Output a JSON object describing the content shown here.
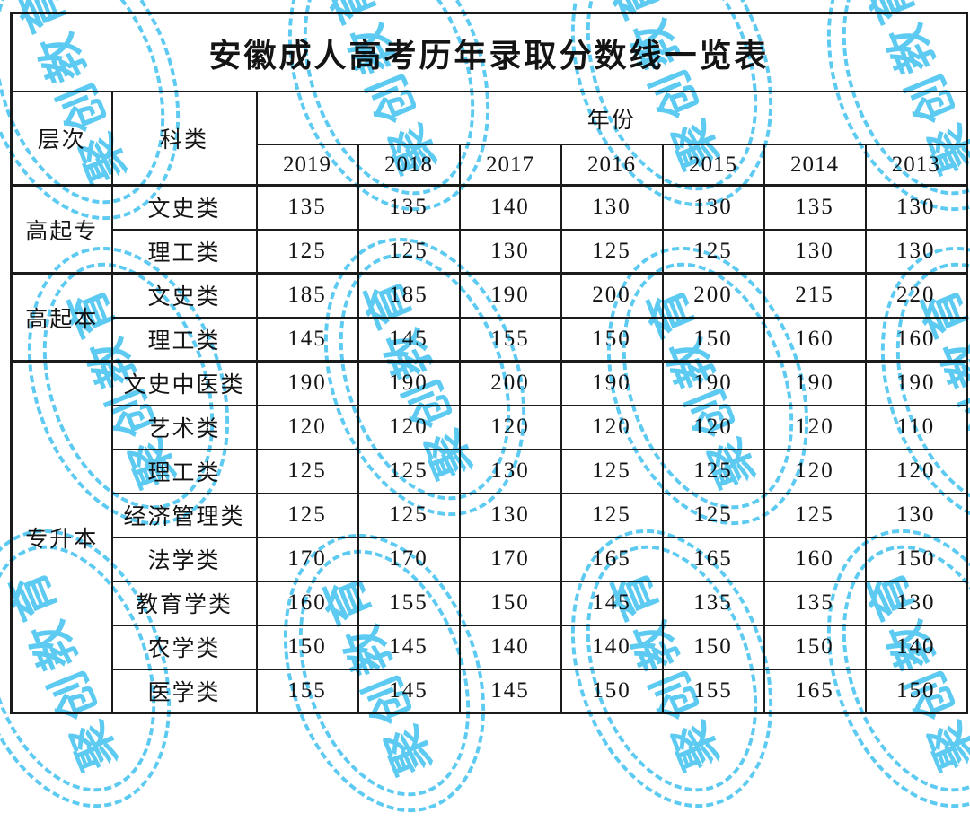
{
  "title": "安徽成人高考历年录取分数线一览表",
  "table": {
    "level_header": "层次",
    "category_header": "科类",
    "year_header": "年份",
    "years": [
      "2019",
      "2018",
      "2017",
      "2016",
      "2015",
      "2014",
      "2013"
    ],
    "groups": [
      {
        "level": "高起专",
        "rows": [
          {
            "category": "文史类",
            "scores": [
              "135",
              "135",
              "140",
              "130",
              "130",
              "135",
              "130"
            ]
          },
          {
            "category": "理工类",
            "scores": [
              "125",
              "125",
              "130",
              "125",
              "125",
              "130",
              "130"
            ]
          }
        ]
      },
      {
        "level": "高起本",
        "rows": [
          {
            "category": "文史类",
            "scores": [
              "185",
              "185",
              "190",
              "200",
              "200",
              "215",
              "220"
            ]
          },
          {
            "category": "理工类",
            "scores": [
              "145",
              "145",
              "155",
              "150",
              "150",
              "160",
              "160"
            ]
          }
        ]
      },
      {
        "level": "专升本",
        "rows": [
          {
            "category": "文史中医类",
            "scores": [
              "190",
              "190",
              "200",
              "190",
              "190",
              "190",
              "190"
            ]
          },
          {
            "category": "艺术类",
            "scores": [
              "120",
              "120",
              "120",
              "120",
              "120",
              "120",
              "110"
            ]
          },
          {
            "category": "理工类",
            "scores": [
              "125",
              "125",
              "130",
              "125",
              "125",
              "120",
              "120"
            ]
          },
          {
            "category": "经济管理类",
            "scores": [
              "125",
              "125",
              "130",
              "125",
              "125",
              "125",
              "130"
            ]
          },
          {
            "category": "法学类",
            "scores": [
              "170",
              "170",
              "170",
              "165",
              "165",
              "160",
              "150"
            ]
          },
          {
            "category": "教育学类",
            "scores": [
              "160",
              "155",
              "150",
              "145",
              "135",
              "135",
              "130"
            ]
          },
          {
            "category": "农学类",
            "scores": [
              "150",
              "145",
              "140",
              "140",
              "150",
              "150",
              "140"
            ]
          },
          {
            "category": "医学类",
            "scores": [
              "155",
              "145",
              "145",
              "150",
              "155",
              "165",
              "150"
            ]
          }
        ]
      }
    ]
  },
  "watermark": {
    "text": "聚创教育",
    "color": "#55c8f1"
  }
}
